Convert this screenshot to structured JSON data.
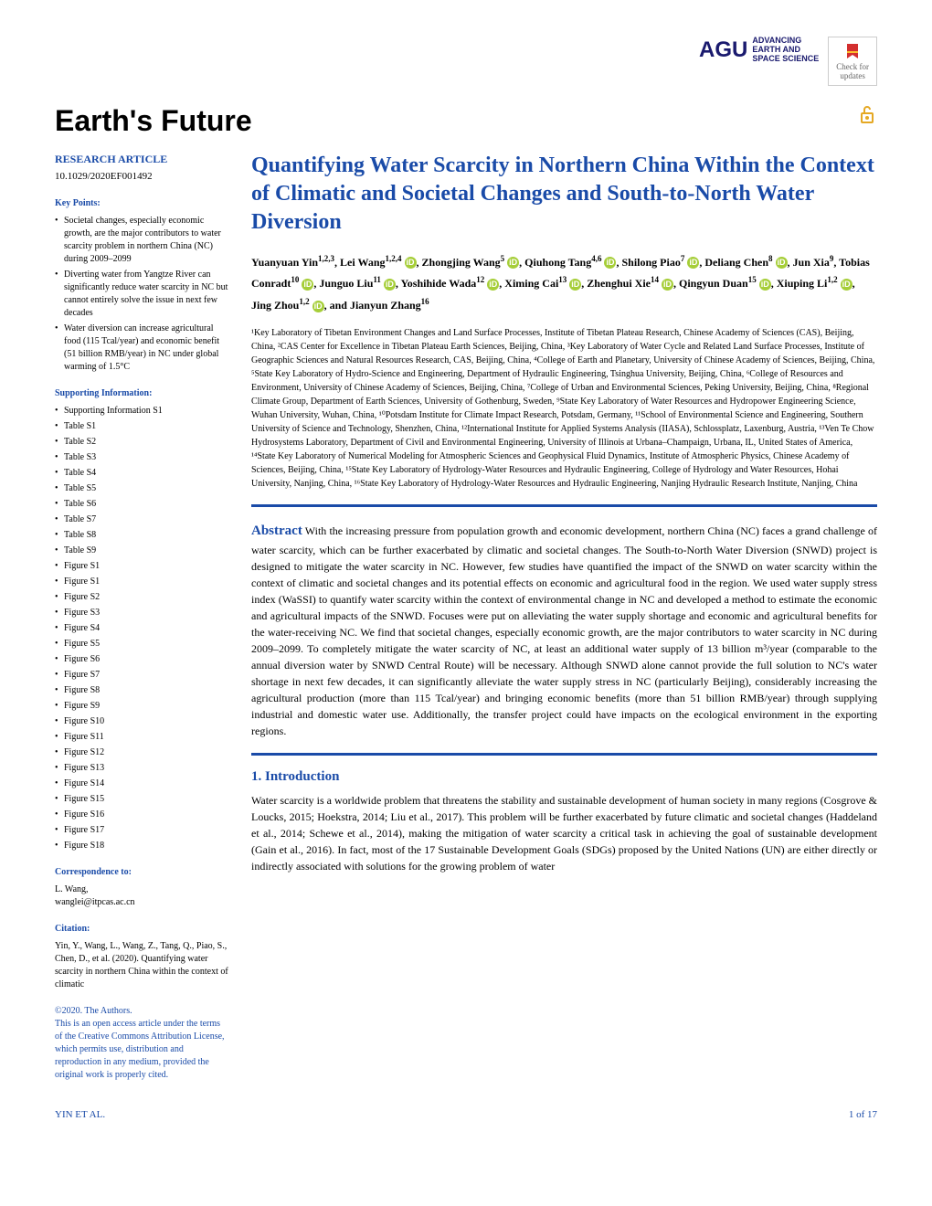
{
  "header": {
    "publisher_name": "AGU",
    "publisher_tagline": "ADVANCING\nEARTH AND\nSPACE SCIENCE",
    "check_updates": "Check for\nupdates"
  },
  "journal": {
    "title": "Earth's Future"
  },
  "article_type": "RESEARCH ARTICLE",
  "doi": "10.1029/2020EF001492",
  "key_points_label": "Key Points:",
  "key_points": [
    "Societal changes, especially economic growth, are the major contributors to water scarcity problem in northern China (NC) during 2009–2099",
    "Diverting water from Yangtze River can significantly reduce water scarcity in NC but cannot entirely solve the issue in next few decades",
    "Water diversion can increase agricultural food (115 Tcal/year) and economic benefit (51 billion RMB/year) in NC under global warming of 1.5°C"
  ],
  "supporting_info_label": "Supporting Information:",
  "supporting_info": [
    "Supporting Information S1",
    "Table S1",
    "Table S2",
    "Table S3",
    "Table S4",
    "Table S5",
    "Table S6",
    "Table S7",
    "Table S8",
    "Table S9",
    "Figure S1",
    "Figure S1",
    "Figure S2",
    "Figure S3",
    "Figure S4",
    "Figure S5",
    "Figure S6",
    "Figure S7",
    "Figure S8",
    "Figure S9",
    "Figure S10",
    "Figure S11",
    "Figure S12",
    "Figure S13",
    "Figure S14",
    "Figure S15",
    "Figure S16",
    "Figure S17",
    "Figure S18"
  ],
  "correspondence_label": "Correspondence to:",
  "correspondence": "L. Wang,\nwanglei@itpcas.ac.cn",
  "citation_label": "Citation:",
  "citation": "Yin, Y., Wang, L., Wang, Z., Tang, Q., Piao, S., Chen, D., et al. (2020). Quantifying water scarcity in northern China within the context of climatic",
  "copyright": "©2020. The Authors.",
  "license": "This is an open access article under the terms of the Creative Commons Attribution License, which permits use, distribution and reproduction in any medium, provided the original work is properly cited.",
  "title": "Quantifying Water Scarcity in Northern China Within the Context of Climatic and Societal Changes and South-to-North Water Diversion",
  "authors_html": "Yuanyuan Yin<span class='sup'>1,2,3</span>, Lei Wang<span class='sup'>1,2,4</span> <span class='orcid'>iD</span>, Zhongjing Wang<span class='sup'>5</span> <span class='orcid'>iD</span>, Qiuhong Tang<span class='sup'>4,6</span> <span class='orcid'>iD</span>, Shilong Piao<span class='sup'>7</span> <span class='orcid'>iD</span>, Deliang Chen<span class='sup'>8</span> <span class='orcid'>iD</span>, Jun Xia<span class='sup'>9</span>, Tobias Conradt<span class='sup'>10</span> <span class='orcid'>iD</span>, Junguo Liu<span class='sup'>11</span> <span class='orcid'>iD</span>, Yoshihide Wada<span class='sup'>12</span> <span class='orcid'>iD</span>, Ximing Cai<span class='sup'>13</span> <span class='orcid'>iD</span>, Zhenghui Xie<span class='sup'>14</span> <span class='orcid'>iD</span>, Qingyun Duan<span class='sup'>15</span> <span class='orcid'>iD</span>, Xiuping Li<span class='sup'>1,2</span> <span class='orcid'>iD</span>, Jing Zhou<span class='sup'>1,2</span> <span class='orcid'>iD</span>, and Jianyun Zhang<span class='sup'>16</span>",
  "affiliations": "¹Key Laboratory of Tibetan Environment Changes and Land Surface Processes, Institute of Tibetan Plateau Research, Chinese Academy of Sciences (CAS), Beijing, China, ²CAS Center for Excellence in Tibetan Plateau Earth Sciences, Beijing, China, ³Key Laboratory of Water Cycle and Related Land Surface Processes, Institute of Geographic Sciences and Natural Resources Research, CAS, Beijing, China, ⁴College of Earth and Planetary, University of Chinese Academy of Sciences, Beijing, China, ⁵State Key Laboratory of Hydro-Science and Engineering, Department of Hydraulic Engineering, Tsinghua University, Beijing, China, ⁶College of Resources and Environment, University of Chinese Academy of Sciences, Beijing, China, ⁷College of Urban and Environmental Sciences, Peking University, Beijing, China, ⁸Regional Climate Group, Department of Earth Sciences, University of Gothenburg, Sweden, ⁹State Key Laboratory of Water Resources and Hydropower Engineering Science, Wuhan University, Wuhan, China, ¹⁰Potsdam Institute for Climate Impact Research, Potsdam, Germany, ¹¹School of Environmental Science and Engineering, Southern University of Science and Technology, Shenzhen, China, ¹²International Institute for Applied Systems Analysis (IIASA), Schlossplatz, Laxenburg, Austria, ¹³Ven Te Chow Hydrosystems Laboratory, Department of Civil and Environmental Engineering, University of Illinois at Urbana–Champaign, Urbana, IL, United States of America, ¹⁴State Key Laboratory of Numerical Modeling for Atmospheric Sciences and Geophysical Fluid Dynamics, Institute of Atmospheric Physics, Chinese Academy of Sciences, Beijing, China, ¹⁵State Key Laboratory of Hydrology-Water Resources and Hydraulic Engineering, College of Hydrology and Water Resources, Hohai University, Nanjing, China, ¹⁶State Key Laboratory of Hydrology-Water Resources and Hydraulic Engineering, Nanjing Hydraulic Research Institute, Nanjing, China",
  "abstract_label": "Abstract",
  "abstract": "With the increasing pressure from population growth and economic development, northern China (NC) faces a grand challenge of water scarcity, which can be further exacerbated by climatic and societal changes. The South-to-North Water Diversion (SNWD) project is designed to mitigate the water scarcity in NC. However, few studies have quantified the impact of the SNWD on water scarcity within the context of climatic and societal changes and its potential effects on economic and agricultural food in the region. We used water supply stress index (WaSSI) to quantify water scarcity within the context of environmental change in NC and developed a method to estimate the economic and agricultural impacts of the SNWD. Focuses were put on alleviating the water supply shortage and economic and agricultural benefits for the water-receiving NC. We find that societal changes, especially economic growth, are the major contributors to water scarcity in NC during 2009–2099. To completely mitigate the water scarcity of NC, at least an additional water supply of 13 billion m³/year (comparable to the annual diversion water by SNWD Central Route) will be necessary. Although SNWD alone cannot provide the full solution to NC's water shortage in next few decades, it can significantly alleviate the water supply stress in NC (particularly Beijing), considerably increasing the agricultural production (more than 115 Tcal/year) and bringing economic benefits (more than 51 billion RMB/year) through supplying industrial and domestic water use. Additionally, the transfer project could have impacts on the ecological environment in the exporting regions.",
  "intro_label": "1. Introduction",
  "intro_text": "Water scarcity is a worldwide problem that threatens the stability and sustainable development of human society in many regions (Cosgrove & Loucks, 2015; Hoekstra, 2014; Liu et al., 2017). This problem will be further exacerbated by future climatic and societal changes (Haddeland et al., 2014; Schewe et al., 2014), making the mitigation of water scarcity a critical task in achieving the goal of sustainable development (Gain et al., 2016). In fact, most of the 17 Sustainable Development Goals (SDGs) proposed by the United Nations (UN) are either directly or indirectly associated with solutions for the growing problem of water",
  "footer": {
    "left": "YIN ET AL.",
    "right": "1 of 17"
  }
}
